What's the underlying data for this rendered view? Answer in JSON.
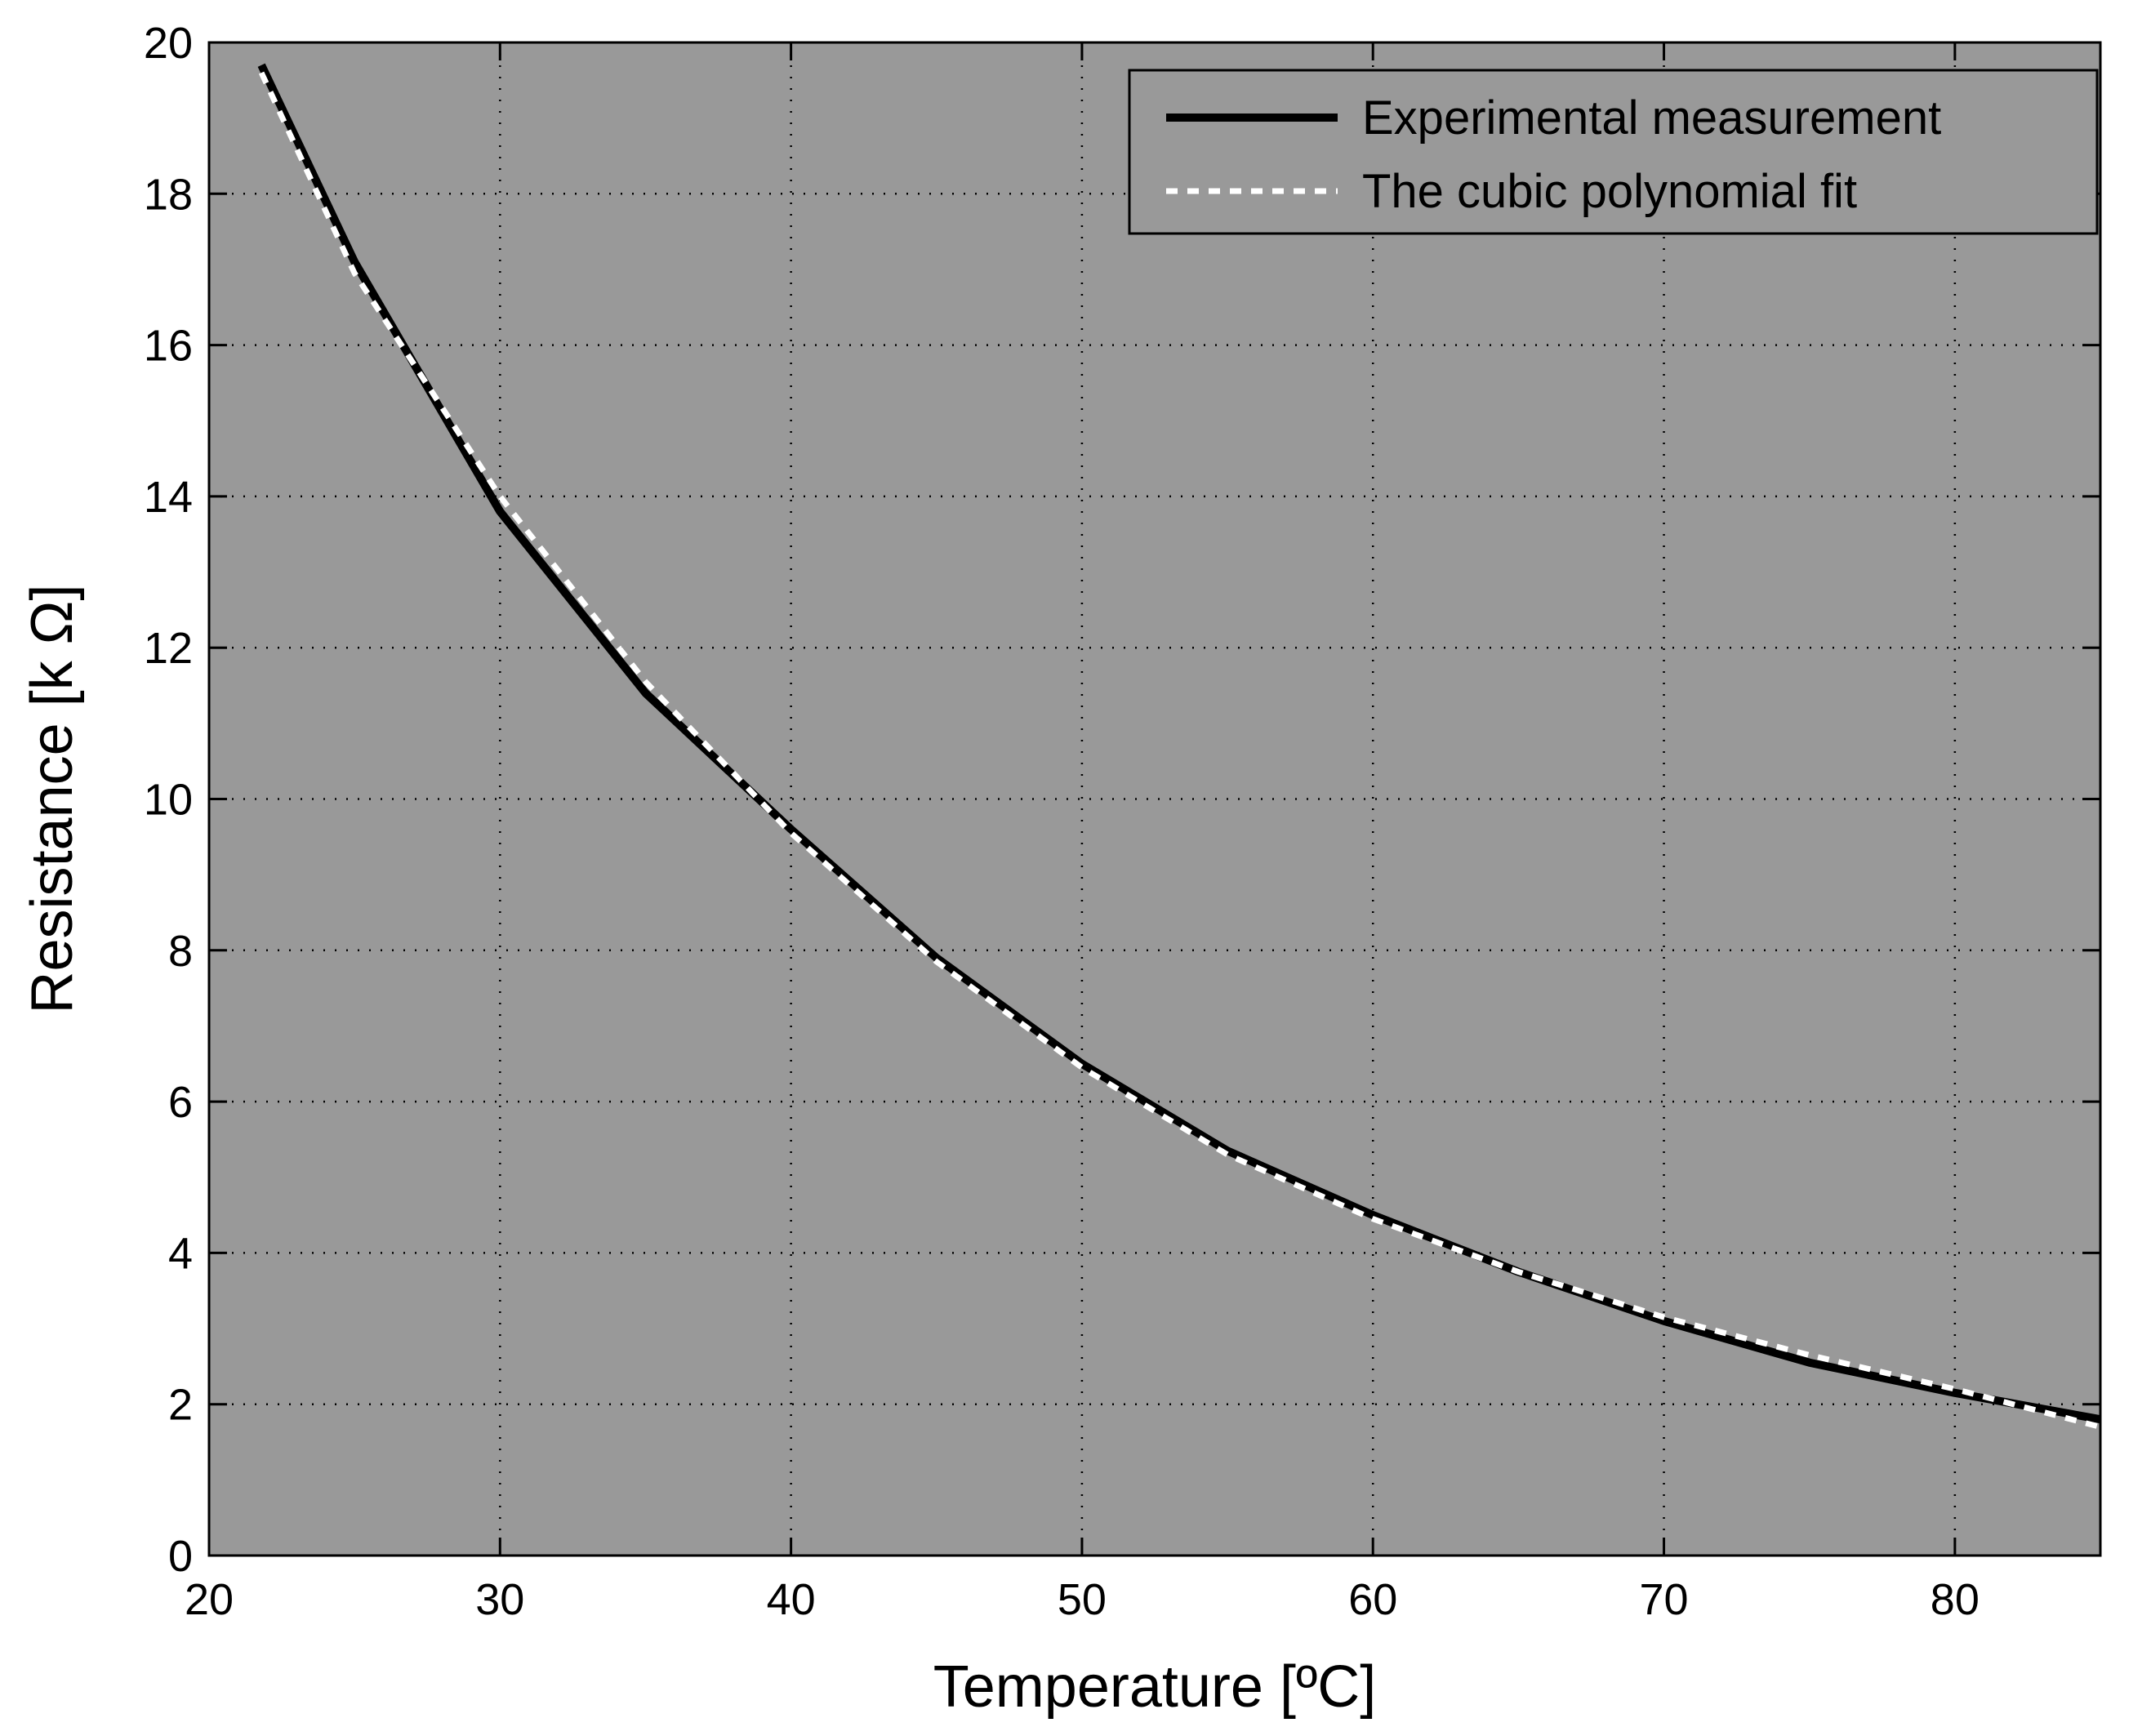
{
  "chart_data": {
    "type": "line",
    "title": "",
    "xlabel": "Temperature [ºC]",
    "ylabel": "Resistance [k Ω]",
    "xlim": [
      20,
      85
    ],
    "ylim": [
      0,
      20
    ],
    "xticks": [
      20,
      30,
      40,
      50,
      60,
      70,
      80
    ],
    "yticks": [
      0,
      2,
      4,
      6,
      8,
      10,
      12,
      14,
      16,
      18,
      20
    ],
    "grid": true,
    "grid_style": "dotted",
    "legend_position": "top-right",
    "background_color": "#999999",
    "series": [
      {
        "name": "Experimental measurement",
        "color": "#000000",
        "style": "solid",
        "x": [
          21.8,
          25,
          30,
          35,
          40,
          45,
          50,
          55,
          60,
          65,
          70,
          75,
          80,
          85
        ],
        "y": [
          19.7,
          17.1,
          13.8,
          11.4,
          9.6,
          7.9,
          6.5,
          5.35,
          4.5,
          3.75,
          3.1,
          2.55,
          2.15,
          1.8
        ]
      },
      {
        "name": "The cubic polynomial fit",
        "color": "#ffffff",
        "style": "dashed",
        "x": [
          21.8,
          25,
          30,
          35,
          40,
          45,
          50,
          55,
          60,
          65,
          70,
          75,
          80,
          85
        ],
        "y": [
          19.6,
          16.95,
          14.0,
          11.55,
          9.55,
          7.85,
          6.45,
          5.3,
          4.45,
          3.75,
          3.15,
          2.65,
          2.2,
          1.7
        ]
      }
    ]
  }
}
